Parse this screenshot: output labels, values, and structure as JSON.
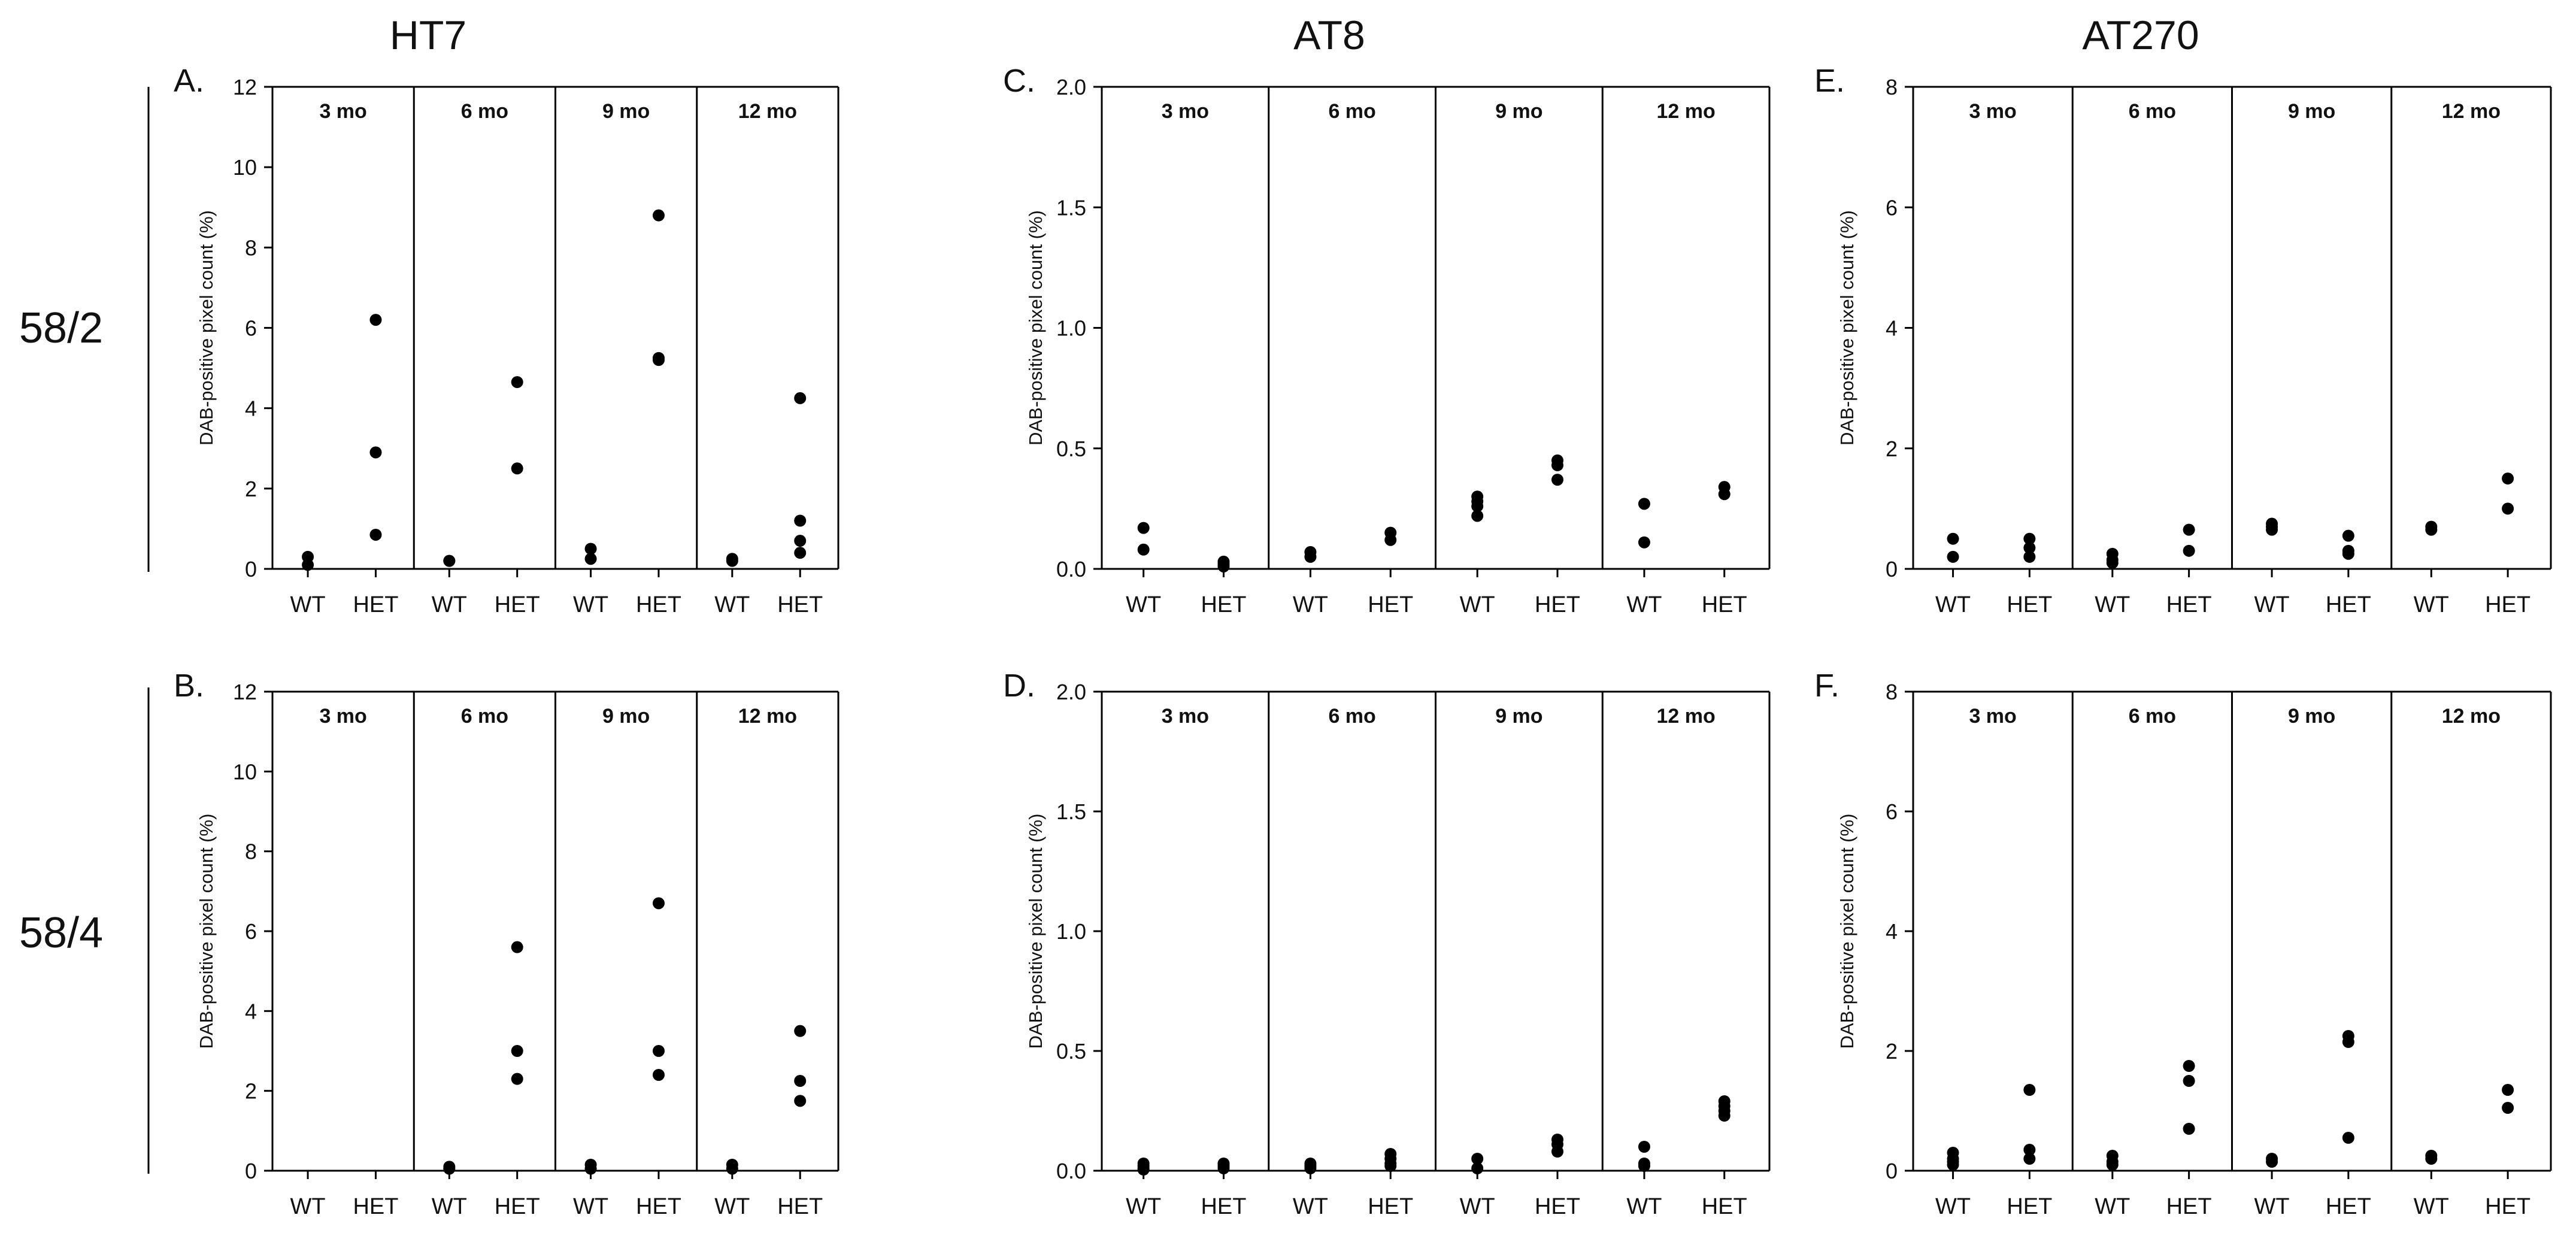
{
  "figure": {
    "column_titles": [
      "HT7",
      "AT8",
      "AT270"
    ],
    "row_labels": [
      "58/2",
      "58/4"
    ]
  },
  "chart_data": [
    {
      "type": "scatter",
      "panel": "A.",
      "title": "HT7",
      "row": "58/2",
      "ylabel": "DAB-positive pixel count (%)",
      "ylim": [
        0,
        12
      ],
      "yticks": [
        "0",
        "2",
        "4",
        "6",
        "8",
        "10",
        "12"
      ],
      "groups": [
        "3 mo",
        "6 mo",
        "9 mo",
        "12 mo"
      ],
      "categories": [
        "WT",
        "HET"
      ],
      "series": [
        {
          "group": "3 mo",
          "WT": [
            0.3,
            0.1
          ],
          "HET": [
            6.2,
            2.9,
            0.85
          ]
        },
        {
          "group": "6 mo",
          "WT": [
            0.2,
            0.2
          ],
          "HET": [
            4.65,
            2.5
          ]
        },
        {
          "group": "9 mo",
          "WT": [
            0.5,
            0.25
          ],
          "HET": [
            8.8,
            5.2,
            5.25
          ]
        },
        {
          "group": "12 mo",
          "WT": [
            0.25,
            0.2
          ],
          "HET": [
            4.25,
            1.2,
            0.7,
            0.4
          ]
        }
      ]
    },
    {
      "type": "scatter",
      "panel": "C.",
      "title": "AT8",
      "row": "58/2",
      "ylabel": "DAB-positive pixel count (%)",
      "ylim": [
        0,
        2.0
      ],
      "yticks": [
        "0.0",
        "0.5",
        "1.0",
        "1.5",
        "2.0"
      ],
      "groups": [
        "3 mo",
        "6 mo",
        "9 mo",
        "12 mo"
      ],
      "categories": [
        "WT",
        "HET"
      ],
      "series": [
        {
          "group": "3 mo",
          "WT": [
            0.17,
            0.08
          ],
          "HET": [
            0.03,
            0.02,
            0.01
          ]
        },
        {
          "group": "6 mo",
          "WT": [
            0.07,
            0.05
          ],
          "HET": [
            0.15,
            0.12
          ]
        },
        {
          "group": "9 mo",
          "WT": [
            0.3,
            0.28,
            0.26,
            0.22
          ],
          "HET": [
            0.45,
            0.43,
            0.37
          ]
        },
        {
          "group": "12 mo",
          "WT": [
            0.27,
            0.11
          ],
          "HET": [
            0.34,
            0.31
          ]
        }
      ]
    },
    {
      "type": "scatter",
      "panel": "E.",
      "title": "AT270",
      "row": "58/2",
      "ylabel": "DAB-positive pixel count (%)",
      "ylim": [
        0,
        8
      ],
      "yticks": [
        "0",
        "2",
        "4",
        "6",
        "8"
      ],
      "groups": [
        "3 mo",
        "6 mo",
        "9 mo",
        "12 mo"
      ],
      "categories": [
        "WT",
        "HET"
      ],
      "series": [
        {
          "group": "3 mo",
          "WT": [
            0.5,
            0.2
          ],
          "HET": [
            0.5,
            0.35,
            0.2
          ]
        },
        {
          "group": "6 mo",
          "WT": [
            0.25,
            0.15,
            0.1
          ],
          "HET": [
            0.65,
            0.3
          ]
        },
        {
          "group": "9 mo",
          "WT": [
            0.75,
            0.7,
            0.65
          ],
          "HET": [
            0.55,
            0.3,
            0.25
          ]
        },
        {
          "group": "12 mo",
          "WT": [
            0.7,
            0.65
          ],
          "HET": [
            1.5,
            1.0
          ]
        }
      ]
    },
    {
      "type": "scatter",
      "panel": "B.",
      "title": "HT7",
      "row": "58/4",
      "ylabel": "DAB-positive pixel count (%)",
      "ylim": [
        0,
        12
      ],
      "yticks": [
        "0",
        "2",
        "4",
        "6",
        "8",
        "10",
        "12"
      ],
      "groups": [
        "3 mo",
        "6 mo",
        "9 mo",
        "12 mo"
      ],
      "categories": [
        "WT",
        "HET"
      ],
      "series": [
        {
          "group": "3 mo",
          "WT": [],
          "HET": []
        },
        {
          "group": "6 mo",
          "WT": [
            0.1,
            0.05
          ],
          "HET": [
            5.6,
            3.0,
            2.3
          ]
        },
        {
          "group": "9 mo",
          "WT": [
            0.15,
            0.05
          ],
          "HET": [
            6.7,
            3.0,
            2.4
          ]
        },
        {
          "group": "12 mo",
          "WT": [
            0.15,
            0.05
          ],
          "HET": [
            3.5,
            2.25,
            1.75
          ]
        }
      ]
    },
    {
      "type": "scatter",
      "panel": "D.",
      "title": "AT8",
      "row": "58/4",
      "ylabel": "DAB-positive pixel count (%)",
      "ylim": [
        0,
        2.0
      ],
      "yticks": [
        "0.0",
        "0.5",
        "1.0",
        "1.5",
        "2.0"
      ],
      "groups": [
        "3 mo",
        "6 mo",
        "9 mo",
        "12 mo"
      ],
      "categories": [
        "WT",
        "HET"
      ],
      "series": [
        {
          "group": "3 mo",
          "WT": [
            0.03,
            0.02,
            0.01,
            0.005
          ],
          "HET": [
            0.03,
            0.02,
            0.01
          ]
        },
        {
          "group": "6 mo",
          "WT": [
            0.03,
            0.02,
            0.01
          ],
          "HET": [
            0.07,
            0.05,
            0.03,
            0.02
          ]
        },
        {
          "group": "9 mo",
          "WT": [
            0.05,
            0.01
          ],
          "HET": [
            0.13,
            0.11,
            0.08
          ]
        },
        {
          "group": "12 mo",
          "WT": [
            0.1,
            0.03,
            0.02
          ],
          "HET": [
            0.29,
            0.27,
            0.25,
            0.23
          ]
        }
      ]
    },
    {
      "type": "scatter",
      "panel": "F.",
      "title": "AT270",
      "row": "58/4",
      "ylabel": "DAB-positive pixel count (%)",
      "ylim": [
        0,
        8
      ],
      "yticks": [
        "0",
        "2",
        "4",
        "6",
        "8"
      ],
      "groups": [
        "3 mo",
        "6 mo",
        "9 mo",
        "12 mo"
      ],
      "categories": [
        "WT",
        "HET"
      ],
      "series": [
        {
          "group": "3 mo",
          "WT": [
            0.3,
            0.2,
            0.15,
            0.1
          ],
          "HET": [
            1.35,
            0.35,
            0.2
          ]
        },
        {
          "group": "6 mo",
          "WT": [
            0.25,
            0.15,
            0.1
          ],
          "HET": [
            1.75,
            1.5,
            0.7
          ]
        },
        {
          "group": "9 mo",
          "WT": [
            0.2,
            0.15
          ],
          "HET": [
            2.25,
            2.15,
            0.55
          ]
        },
        {
          "group": "12 mo",
          "WT": [
            0.25,
            0.2
          ],
          "HET": [
            1.35,
            1.05
          ]
        }
      ]
    }
  ]
}
